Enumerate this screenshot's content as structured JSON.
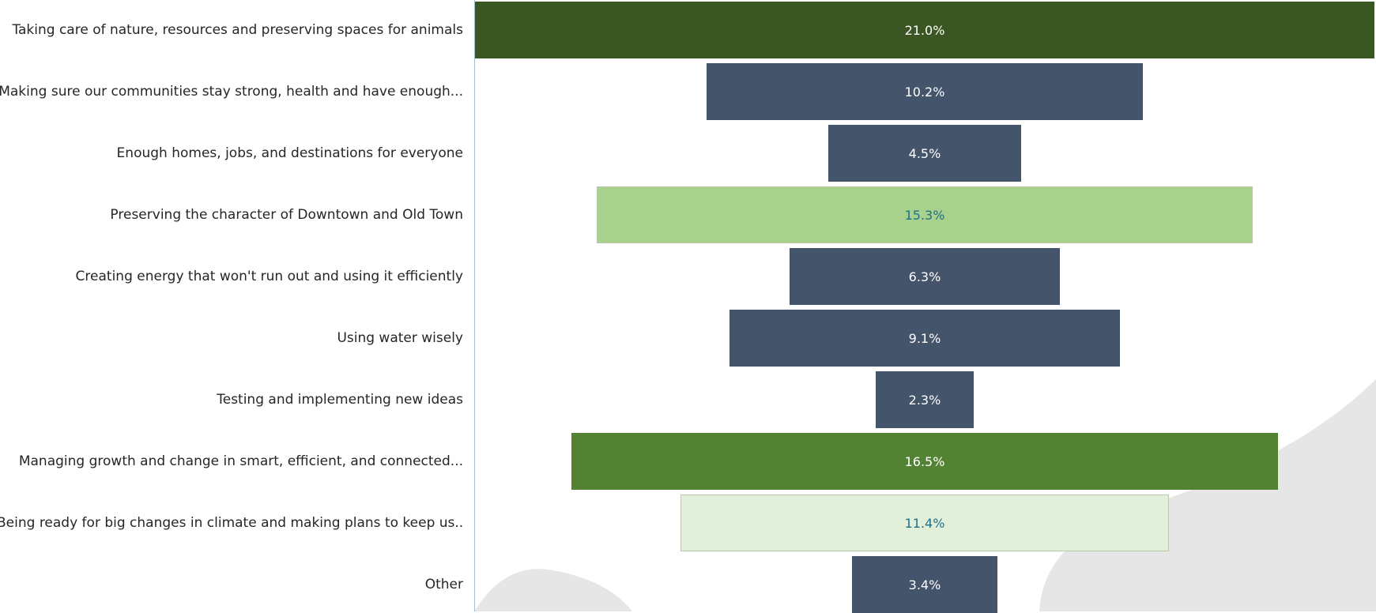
{
  "chart_data": {
    "type": "bar",
    "orientation": "horizontal-centered (funnel)",
    "categories": [
      "Taking care of nature, resources and preserving spaces for animals",
      "Making sure our communities stay strong, health and have enough...",
      "Enough homes, jobs, and destinations for everyone",
      "Preserving the character of Downtown and Old Town",
      "Creating energy that won't run out and using it efficiently",
      "Using water wisely",
      "Testing and implementing new ideas",
      "Managing growth and change in smart, efficient, and connected...",
      "Being ready for big changes in climate and making plans to keep us...",
      "Other"
    ],
    "values": [
      21.0,
      10.2,
      4.5,
      15.3,
      6.3,
      9.1,
      2.3,
      16.5,
      11.4,
      3.4
    ],
    "data_labels": [
      "21.0%",
      "10.2%",
      "4.5%",
      "15.3%",
      "6.3%",
      "9.1%",
      "2.3%",
      "16.5%",
      "11.4%",
      "3.4%"
    ],
    "bar_colors": [
      "#3a5623",
      "#44546a",
      "#44546a",
      "#a9d18e",
      "#44546a",
      "#44546a",
      "#44546a",
      "#548235",
      "#e2efda",
      "#44546a"
    ],
    "label_colors": [
      "#ffffff",
      "#ffffff",
      "#ffffff",
      "#1f6f8b",
      "#ffffff",
      "#ffffff",
      "#ffffff",
      "#ffffff",
      "#1f6f8b",
      "#ffffff"
    ],
    "title": "",
    "xlabel": "",
    "ylabel": "",
    "grid": false,
    "legend": "none"
  }
}
